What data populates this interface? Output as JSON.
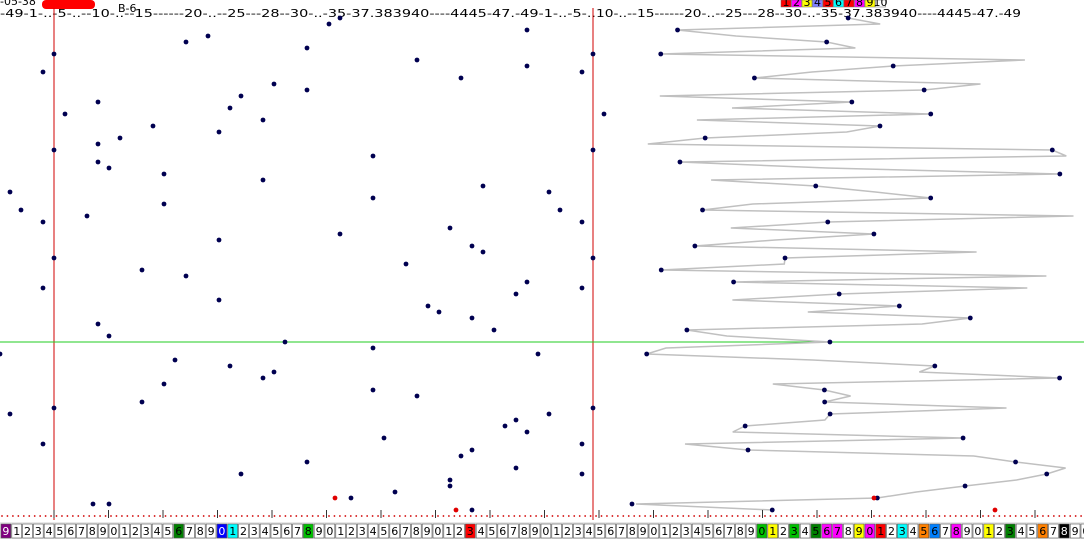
{
  "header": {
    "date": "-05-38",
    "code": "B-6",
    "left_scale": "-49-1-..-5-..--10-..--15------20-..--25---28--30-..-35-37.383940----4445-47.-49-1-..-5-..",
    "right_scale": "10-..--15------20-..--25---28--30-..-35-37.383940----4445-47.-49",
    "legend": [
      {
        "text": "1",
        "color": "#ff0000"
      },
      {
        "text": "2",
        "color": "#ff00ff"
      },
      {
        "text": "3",
        "color": "#ffff00"
      },
      {
        "text": "4",
        "color": "#8080ff"
      },
      {
        "text": "5",
        "color": "#ff0000"
      },
      {
        "text": "6",
        "color": "#00ffff"
      },
      {
        "text": "7",
        "color": "#ff0000"
      },
      {
        "text": "8",
        "color": "#ff00ff"
      },
      {
        "text": "9",
        "color": "#ffff00"
      },
      {
        "text": "10",
        "color": "#ffffff"
      }
    ]
  },
  "bottom_cells": [
    {
      "text": "9",
      "color": "#800080"
    },
    {
      "text": "1",
      "color": "#fff"
    },
    {
      "text": "2",
      "color": "#fff"
    },
    {
      "text": "3",
      "color": "#fff"
    },
    {
      "text": "4",
      "color": "#fff"
    },
    {
      "text": "5",
      "color": "#fff"
    },
    {
      "text": "6",
      "color": "#fff"
    },
    {
      "text": "7",
      "color": "#fff"
    },
    {
      "text": "8",
      "color": "#fff"
    },
    {
      "text": "9",
      "color": "#fff"
    },
    {
      "text": "0",
      "color": "#fff"
    },
    {
      "text": "1",
      "color": "#fff"
    },
    {
      "text": "2",
      "color": "#fff"
    },
    {
      "text": "3",
      "color": "#fff"
    },
    {
      "text": "4",
      "color": "#fff"
    },
    {
      "text": "5",
      "color": "#fff"
    },
    {
      "text": "6",
      "color": "#008000"
    },
    {
      "text": "7",
      "color": "#fff"
    },
    {
      "text": "8",
      "color": "#fff"
    },
    {
      "text": "9",
      "color": "#fff"
    },
    {
      "text": "0",
      "color": "#0000ff"
    },
    {
      "text": "1",
      "color": "#00ffff"
    },
    {
      "text": "2",
      "color": "#fff"
    },
    {
      "text": "3",
      "color": "#fff"
    },
    {
      "text": "4",
      "color": "#fff"
    },
    {
      "text": "5",
      "color": "#fff"
    },
    {
      "text": "6",
      "color": "#fff"
    },
    {
      "text": "7",
      "color": "#fff"
    },
    {
      "text": "8",
      "color": "#00c000"
    },
    {
      "text": "9",
      "color": "#fff"
    },
    {
      "text": "0",
      "color": "#fff"
    },
    {
      "text": "1",
      "color": "#fff"
    },
    {
      "text": "2",
      "color": "#fff"
    },
    {
      "text": "3",
      "color": "#fff"
    },
    {
      "text": "4",
      "color": "#fff"
    },
    {
      "text": "5",
      "color": "#fff"
    },
    {
      "text": "6",
      "color": "#fff"
    },
    {
      "text": "7",
      "color": "#fff"
    },
    {
      "text": "8",
      "color": "#fff"
    },
    {
      "text": "9",
      "color": "#fff"
    },
    {
      "text": "0",
      "color": "#fff"
    },
    {
      "text": "1",
      "color": "#fff"
    },
    {
      "text": "2",
      "color": "#fff"
    },
    {
      "text": "3",
      "color": "#ff0000"
    },
    {
      "text": "4",
      "color": "#fff"
    },
    {
      "text": "5",
      "color": "#fff"
    },
    {
      "text": "6",
      "color": "#fff"
    },
    {
      "text": "7",
      "color": "#fff"
    },
    {
      "text": "8",
      "color": "#fff"
    },
    {
      "text": "9",
      "color": "#fff"
    },
    {
      "text": "0",
      "color": "#fff"
    },
    {
      "text": "1",
      "color": "#fff"
    },
    {
      "text": "2",
      "color": "#fff"
    },
    {
      "text": "3",
      "color": "#fff"
    },
    {
      "text": "4",
      "color": "#fff"
    },
    {
      "text": "5",
      "color": "#fff"
    },
    {
      "text": "6",
      "color": "#fff"
    },
    {
      "text": "7",
      "color": "#fff"
    },
    {
      "text": "8",
      "color": "#fff"
    },
    {
      "text": "9",
      "color": "#fff"
    },
    {
      "text": "0",
      "color": "#fff"
    },
    {
      "text": "1",
      "color": "#fff"
    },
    {
      "text": "2",
      "color": "#fff"
    },
    {
      "text": "3",
      "color": "#fff"
    },
    {
      "text": "4",
      "color": "#fff"
    },
    {
      "text": "5",
      "color": "#fff"
    },
    {
      "text": "6",
      "color": "#fff"
    },
    {
      "text": "7",
      "color": "#fff"
    },
    {
      "text": "8",
      "color": "#fff"
    },
    {
      "text": "9",
      "color": "#fff"
    },
    {
      "text": "0",
      "color": "#00c000"
    },
    {
      "text": "1",
      "color": "#ffff00"
    },
    {
      "text": "2",
      "color": "#fff"
    },
    {
      "text": "3",
      "color": "#00c000"
    },
    {
      "text": "4",
      "color": "#fff"
    },
    {
      "text": "5",
      "color": "#008000"
    },
    {
      "text": "6",
      "color": "#ff00ff"
    },
    {
      "text": "7",
      "color": "#ff00ff"
    },
    {
      "text": "8",
      "color": "#fff"
    },
    {
      "text": "9",
      "color": "#ffff00"
    },
    {
      "text": "0",
      "color": "#ff00ff"
    },
    {
      "text": "1",
      "color": "#ff0000"
    },
    {
      "text": "2",
      "color": "#fff"
    },
    {
      "text": "3",
      "color": "#00ffff"
    },
    {
      "text": "4",
      "color": "#fff"
    },
    {
      "text": "5",
      "color": "#ff8000"
    },
    {
      "text": "6",
      "color": "#0080ff"
    },
    {
      "text": "7",
      "color": "#fff"
    },
    {
      "text": "8",
      "color": "#ff00ff"
    },
    {
      "text": "9",
      "color": "#fff"
    },
    {
      "text": "0",
      "color": "#fff"
    },
    {
      "text": "1",
      "color": "#ffff00"
    },
    {
      "text": "2",
      "color": "#fff"
    },
    {
      "text": "3",
      "color": "#008000"
    },
    {
      "text": "4",
      "color": "#fff"
    },
    {
      "text": "5",
      "color": "#fff"
    },
    {
      "text": "6",
      "color": "#ff8000"
    },
    {
      "text": "7",
      "color": "#fff"
    },
    {
      "text": "8",
      "color": "#000000"
    },
    {
      "text": "9",
      "color": "#fff"
    },
    {
      "text": "0",
      "color": "#fff"
    }
  ]
}
